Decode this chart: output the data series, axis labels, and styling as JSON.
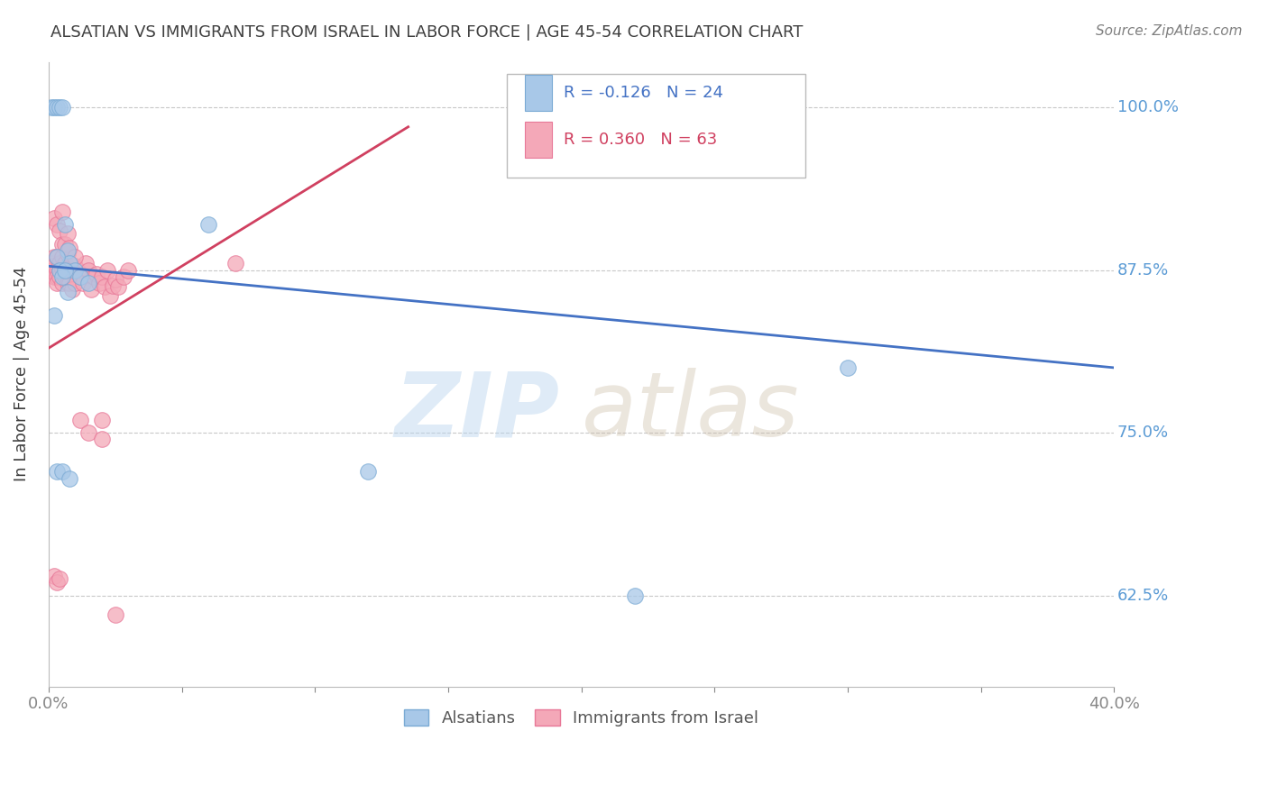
{
  "title": "ALSATIAN VS IMMIGRANTS FROM ISRAEL IN LABOR FORCE | AGE 45-54 CORRELATION CHART",
  "source": "Source: ZipAtlas.com",
  "ylabel": "In Labor Force | Age 45-54",
  "xlim": [
    0.0,
    0.4
  ],
  "ylim": [
    0.555,
    1.035
  ],
  "yticks": [
    0.625,
    0.75,
    0.875,
    1.0
  ],
  "ytick_labels": [
    "62.5%",
    "75.0%",
    "87.5%",
    "100.0%"
  ],
  "xticks": [
    0.0,
    0.05,
    0.1,
    0.15,
    0.2,
    0.25,
    0.3,
    0.35,
    0.4
  ],
  "blue_color": "#a8c8e8",
  "pink_color": "#f4a8b8",
  "blue_edge": "#7aaad4",
  "pink_edge": "#e87898",
  "trend_blue": "#4472c4",
  "trend_pink": "#d04060",
  "R_blue": -0.126,
  "N_blue": 24,
  "R_pink": 0.36,
  "N_pink": 63,
  "blue_trend_x": [
    0.0,
    0.4
  ],
  "blue_trend_y": [
    0.878,
    0.8
  ],
  "pink_trend_x": [
    0.0,
    0.135
  ],
  "pink_trend_y": [
    0.815,
    0.985
  ],
  "blue_scatter_x": [
    0.001,
    0.002,
    0.003,
    0.004,
    0.005,
    0.006,
    0.007,
    0.008,
    0.01,
    0.012,
    0.015,
    0.003,
    0.004,
    0.005,
    0.006,
    0.007,
    0.002,
    0.003,
    0.06,
    0.12,
    0.22,
    0.3,
    0.005,
    0.008
  ],
  "blue_scatter_y": [
    1.0,
    1.0,
    1.0,
    1.0,
    1.0,
    0.91,
    0.89,
    0.88,
    0.875,
    0.87,
    0.865,
    0.885,
    0.875,
    0.87,
    0.875,
    0.858,
    0.84,
    0.72,
    0.91,
    0.72,
    0.625,
    0.8,
    0.72,
    0.715
  ],
  "pink_scatter_x": [
    0.001,
    0.001,
    0.002,
    0.002,
    0.002,
    0.003,
    0.003,
    0.003,
    0.003,
    0.004,
    0.004,
    0.004,
    0.005,
    0.005,
    0.005,
    0.006,
    0.006,
    0.006,
    0.007,
    0.007,
    0.007,
    0.008,
    0.008,
    0.009,
    0.009,
    0.01,
    0.01,
    0.011,
    0.012,
    0.013,
    0.014,
    0.015,
    0.016,
    0.017,
    0.018,
    0.019,
    0.02,
    0.021,
    0.022,
    0.023,
    0.024,
    0.025,
    0.026,
    0.028,
    0.03,
    0.002,
    0.003,
    0.004,
    0.005,
    0.005,
    0.006,
    0.007,
    0.008,
    0.01,
    0.012,
    0.015,
    0.02,
    0.002,
    0.003,
    0.004,
    0.02,
    0.025,
    0.07
  ],
  "pink_scatter_y": [
    0.88,
    0.875,
    0.885,
    0.878,
    0.87,
    0.885,
    0.875,
    0.87,
    0.865,
    0.88,
    0.875,
    0.87,
    0.885,
    0.876,
    0.865,
    0.88,
    0.875,
    0.87,
    0.888,
    0.876,
    0.865,
    0.875,
    0.865,
    0.875,
    0.86,
    0.878,
    0.865,
    0.875,
    0.87,
    0.865,
    0.88,
    0.875,
    0.86,
    0.87,
    0.872,
    0.865,
    0.87,
    0.862,
    0.875,
    0.855,
    0.863,
    0.868,
    0.862,
    0.87,
    0.875,
    0.915,
    0.91,
    0.905,
    0.895,
    0.92,
    0.895,
    0.903,
    0.892,
    0.885,
    0.76,
    0.75,
    0.76,
    0.64,
    0.635,
    0.638,
    0.745,
    0.61,
    0.88
  ],
  "watermark_zip": "ZIP",
  "watermark_atlas": "atlas",
  "background_color": "#ffffff",
  "grid_color": "#c8c8c8",
  "right_label_color": "#5b9bd5",
  "title_color": "#404040",
  "source_color": "#808080"
}
